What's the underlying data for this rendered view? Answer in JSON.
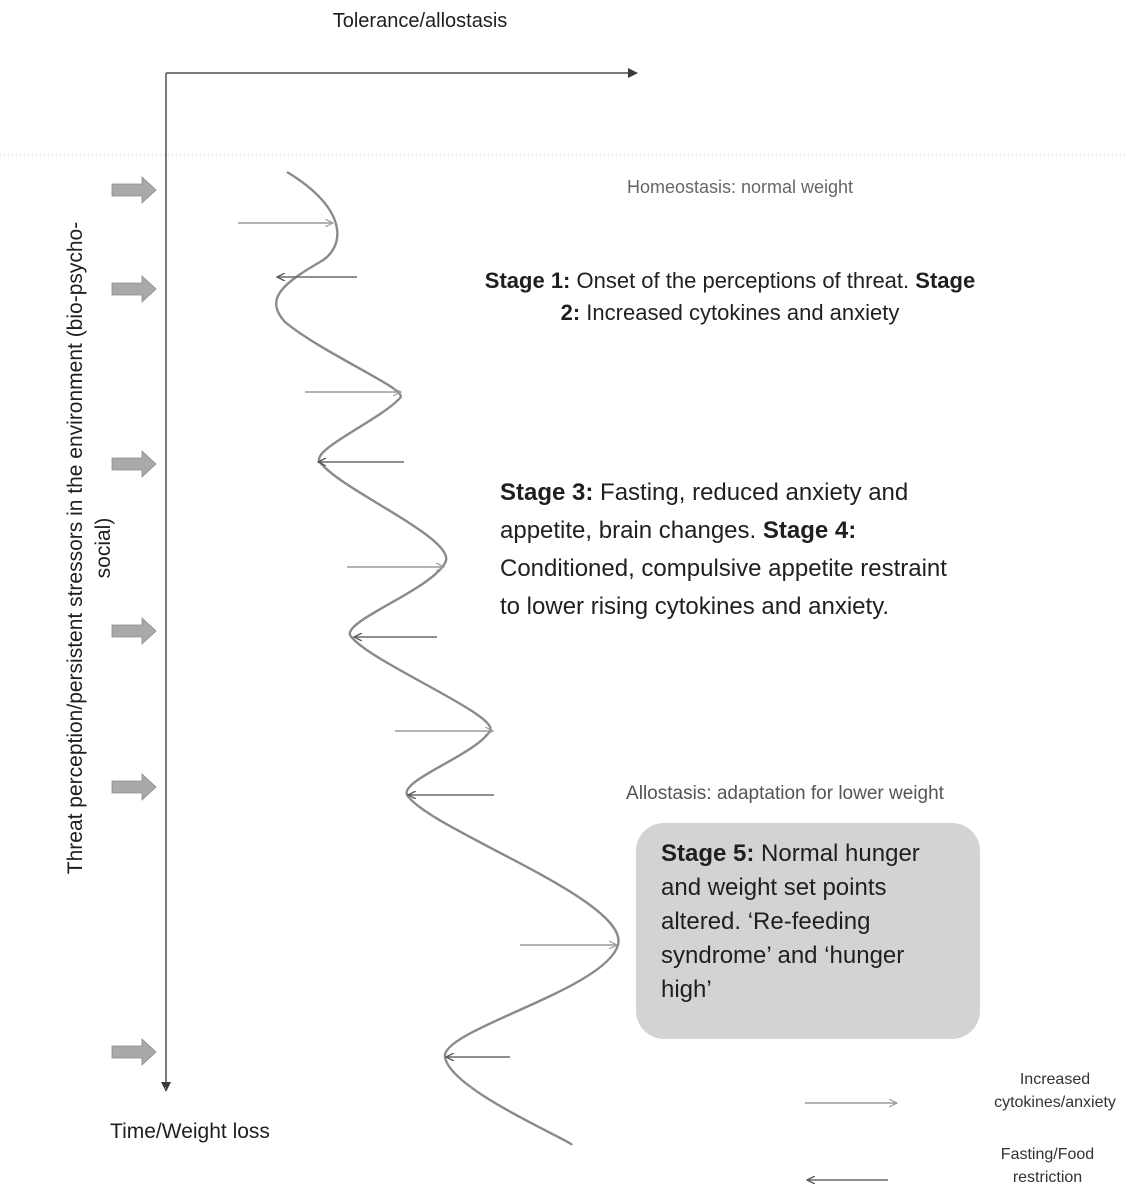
{
  "axes": {
    "top_title": "Tolerance/allostasis",
    "bottom_title": "Time/Weight loss",
    "side_title": "Threat perception/persistent stressors in the environment (bio-psycho-social)"
  },
  "labels": {
    "homeostasis": "Homeostasis: normal weight",
    "allostasis": "Allostasis: adaptation for lower weight"
  },
  "stage12": {
    "stage1_head": "Stage 1:",
    "stage1_text": " Onset of the perceptions of threat. ",
    "stage2_head": "Stage 2:",
    "stage2_text": " Increased cytokines and anxiety"
  },
  "stage34": {
    "stage3_head": "Stage 3:",
    "stage3_text": " Fasting, reduced anxiety and appetite, brain changes. ",
    "stage4_head": "Stage 4:",
    "stage4_text": " Conditioned, compulsive appetite restraint to lower rising cytokines and anxiety."
  },
  "stage5": {
    "head": "Stage 5:",
    "text": " Normal hunger and weight set points altered. ‘Re-feeding syndrome’ and ‘hunger high’"
  },
  "legend": {
    "increase": "Increased cytokines/anxiety",
    "fasting": "Fasting/Food restriction"
  },
  "colors": {
    "wave": "#8a8a8a",
    "axis": "#7a7a7a",
    "stressor_arrow": "#a9a9a9",
    "box": "#d3d3d3",
    "arrow_light": "#9a9a9a",
    "arrow_dark": "#5a5a5a"
  }
}
